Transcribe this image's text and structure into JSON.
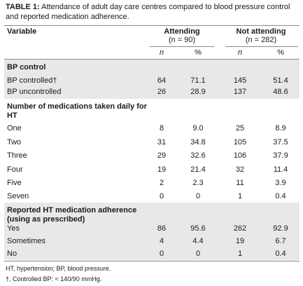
{
  "caption": {
    "label": "TABLE 1:",
    "text": " Attendance of adult day care centres compared to blood pressure control and reported medication adherence."
  },
  "header": {
    "variable": "Variable",
    "attending": {
      "title": "Attending",
      "n": "(n = 90)"
    },
    "not_attending": {
      "title": "Not attending",
      "n": "(n = 282)"
    },
    "col_n": "n",
    "col_pct": "%"
  },
  "sections": {
    "bp": {
      "title": "BP control",
      "rows": [
        {
          "label": "BP controlled†",
          "a_n": "64",
          "a_pct": "71.1",
          "na_n": "145",
          "na_pct": "51.4"
        },
        {
          "label": "BP uncontrolled",
          "a_n": "26",
          "a_pct": "28.9",
          "na_n": "137",
          "na_pct": "48.6"
        }
      ]
    },
    "meds": {
      "title": "Number of medications taken daily for HT",
      "rows": [
        {
          "label": "One",
          "a_n": "8",
          "a_pct": "9.0",
          "na_n": "25",
          "na_pct": "8.9"
        },
        {
          "label": "Two",
          "a_n": "31",
          "a_pct": "34.8",
          "na_n": "105",
          "na_pct": "37.5"
        },
        {
          "label": "Three",
          "a_n": "29",
          "a_pct": "32.6",
          "na_n": "106",
          "na_pct": "37.9"
        },
        {
          "label": "Four",
          "a_n": "19",
          "a_pct": "21.4",
          "na_n": "32",
          "na_pct": "11.4"
        },
        {
          "label": "Five",
          "a_n": "2",
          "a_pct": "2.3",
          "na_n": "11",
          "na_pct": "3.9"
        },
        {
          "label": "Seven",
          "a_n": "0",
          "a_pct": "0",
          "na_n": "1",
          "na_pct": "0.4"
        }
      ]
    },
    "adherence": {
      "title": "Reported HT medication adherence (using as prescribed)",
      "rows": [
        {
          "label": "Yes",
          "a_n": "86",
          "a_pct": "95.6",
          "na_n": "262",
          "na_pct": "92.9"
        },
        {
          "label": "Sometimes",
          "a_n": "4",
          "a_pct": "4.4",
          "na_n": "19",
          "na_pct": "6.7"
        },
        {
          "label": "No",
          "a_n": "0",
          "a_pct": "0",
          "na_n": "1",
          "na_pct": "0.4"
        }
      ]
    }
  },
  "footnotes": {
    "abbrev": "HT, hypertension; BP, blood pressure.",
    "dagger": "†, Controlled BP: < 140/90 mmHg."
  }
}
